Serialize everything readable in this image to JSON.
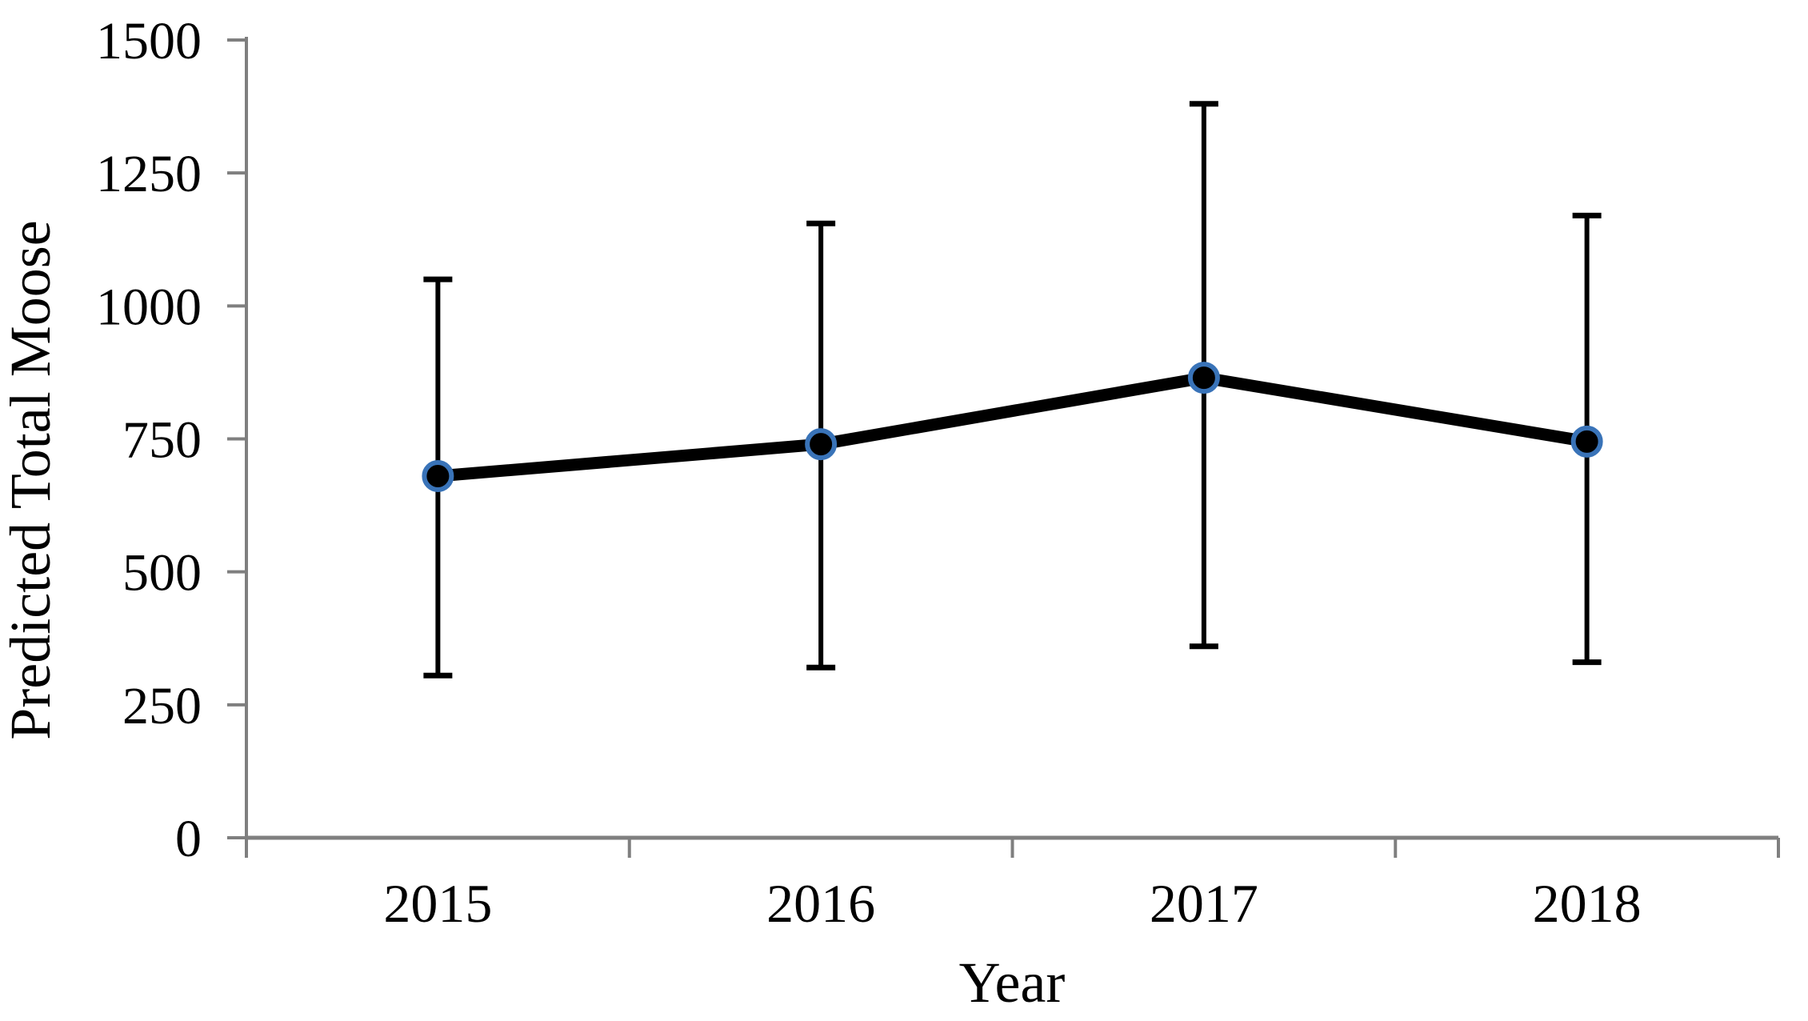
{
  "figure": {
    "background_color": "#ffffff"
  },
  "chart_data": {
    "type": "line",
    "title": "",
    "xlabel": "Year",
    "ylabel": "Predicted Total Moose",
    "categories": [
      "2015",
      "2016",
      "2017",
      "2018"
    ],
    "series": [
      {
        "name": "Predicted total moose",
        "values": [
          680,
          740,
          865,
          745
        ],
        "error_low": [
          305,
          320,
          360,
          330
        ],
        "error_high": [
          1050,
          1155,
          1380,
          1170
        ]
      }
    ],
    "ylim": [
      0,
      1500
    ],
    "yticks": [
      0,
      250,
      500,
      750,
      1000,
      1250,
      1500
    ],
    "grid": false,
    "legend": "none",
    "error_bars": "vertical, capped, symmetric-looking confidence intervals",
    "colors": {
      "series_line": "#000000",
      "marker_fill": "#000000",
      "marker_ring": "#3973B8",
      "axis": "#7f7f7f",
      "text": "#000000",
      "background": "#ffffff"
    }
  }
}
